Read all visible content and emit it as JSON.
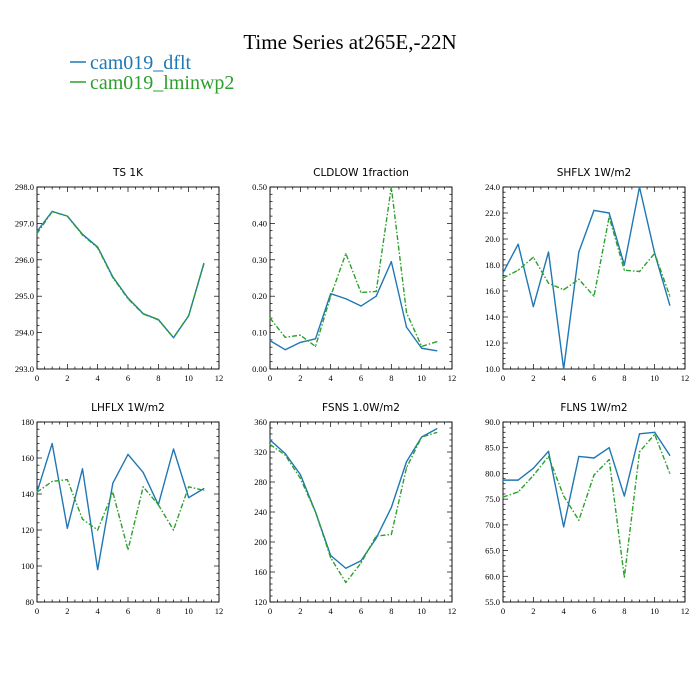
{
  "figure_title": "Time Series at265E,-22N",
  "colors": {
    "series1": "#1f77b4",
    "series2": "#2ca02c",
    "axis": "#000000",
    "background": "#ffffff"
  },
  "legend": [
    {
      "name": "cam019_dflt",
      "color": "#1f77b4"
    },
    {
      "name": "cam019_lminwp2",
      "color": "#2ca02c"
    }
  ],
  "chart_data": [
    {
      "type": "line",
      "title": "TS   1K",
      "x": [
        0,
        1,
        2,
        3,
        4,
        5,
        6,
        7,
        8,
        9,
        10,
        11
      ],
      "xlim": [
        0,
        12
      ],
      "xticks": [
        "0",
        "2",
        "4",
        "6",
        "8",
        "10",
        "12"
      ],
      "ylim": [
        293,
        298
      ],
      "yticks": [
        "293.0",
        "294.0",
        "295.0",
        "296.0",
        "297.0",
        "298.0"
      ],
      "series": [
        {
          "name": "cam019_dflt",
          "values": [
            296.78,
            297.33,
            297.2,
            296.7,
            296.35,
            295.53,
            294.95,
            294.52,
            294.36,
            293.86,
            294.46,
            295.9
          ]
        },
        {
          "name": "cam019_lminwp2",
          "values": [
            296.72,
            297.32,
            297.2,
            296.68,
            296.33,
            295.51,
            294.93,
            294.51,
            294.35,
            293.86,
            294.47,
            295.88
          ]
        }
      ]
    },
    {
      "type": "line",
      "title": "CLDLOW   1fraction",
      "x": [
        0,
        1,
        2,
        3,
        4,
        5,
        6,
        7,
        8,
        9,
        10,
        11
      ],
      "xlim": [
        0,
        12
      ],
      "xticks": [
        "0",
        "2",
        "4",
        "6",
        "8",
        "10",
        "12"
      ],
      "ylim": [
        0,
        0.5
      ],
      "yticks": [
        "0.00",
        "0.10",
        "0.20",
        "0.30",
        "0.40",
        "0.50"
      ],
      "series": [
        {
          "name": "cam019_dflt",
          "values": [
            0.078,
            0.053,
            0.073,
            0.083,
            0.207,
            0.193,
            0.173,
            0.2,
            0.295,
            0.115,
            0.057,
            0.05
          ]
        },
        {
          "name": "cam019_lminwp2",
          "values": [
            0.14,
            0.087,
            0.093,
            0.062,
            0.2,
            0.317,
            0.21,
            0.213,
            0.5,
            0.155,
            0.062,
            0.075
          ]
        }
      ]
    },
    {
      "type": "line",
      "title": "SHFLX   1W/m2",
      "x": [
        0,
        1,
        2,
        3,
        4,
        5,
        6,
        7,
        8,
        9,
        10,
        11
      ],
      "xlim": [
        0,
        12
      ],
      "xticks": [
        "0",
        "2",
        "4",
        "6",
        "8",
        "10",
        "12"
      ],
      "ylim": [
        10,
        24
      ],
      "yticks": [
        "10.0",
        "12.0",
        "14.0",
        "16.0",
        "18.0",
        "20.0",
        "22.0",
        "24.0"
      ],
      "series": [
        {
          "name": "cam019_dflt",
          "values": [
            17.4,
            19.6,
            14.8,
            19.0,
            10.0,
            19.0,
            22.2,
            22.0,
            18.0,
            24.0,
            18.9,
            14.9
          ]
        },
        {
          "name": "cam019_lminwp2",
          "values": [
            17.0,
            17.6,
            18.6,
            16.6,
            16.1,
            16.9,
            15.6,
            21.7,
            17.6,
            17.5,
            18.9,
            15.6
          ]
        }
      ]
    },
    {
      "type": "line",
      "title": "LHFLX   1W/m2",
      "x": [
        0,
        1,
        2,
        3,
        4,
        5,
        6,
        7,
        8,
        9,
        10,
        11
      ],
      "xlim": [
        0,
        12
      ],
      "xticks": [
        "0",
        "2",
        "4",
        "6",
        "8",
        "10",
        "12"
      ],
      "ylim": [
        80,
        180
      ],
      "yticks": [
        "80",
        "100",
        "120",
        "140",
        "160",
        "180"
      ],
      "series": [
        {
          "name": "cam019_dflt",
          "values": [
            141,
            168,
            121,
            154,
            98,
            146,
            162,
            152,
            134,
            165,
            138,
            143
          ]
        },
        {
          "name": "cam019_lminwp2",
          "values": [
            141,
            147,
            148,
            126,
            120,
            141,
            109,
            144,
            134,
            120,
            144,
            142
          ]
        }
      ]
    },
    {
      "type": "line",
      "title": "FSNS   1.0W/m2",
      "x": [
        0,
        1,
        2,
        3,
        4,
        5,
        6,
        7,
        8,
        9,
        10,
        11
      ],
      "xlim": [
        0,
        12
      ],
      "xticks": [
        "0",
        "2",
        "4",
        "6",
        "8",
        "10",
        "12"
      ],
      "ylim": [
        120,
        360
      ],
      "yticks": [
        "120",
        "160",
        "200",
        "240",
        "280",
        "320",
        "360"
      ],
      "series": [
        {
          "name": "cam019_dflt",
          "values": [
            336,
            318,
            290,
            240,
            182,
            165,
            175,
            205,
            246,
            307,
            340,
            351
          ]
        },
        {
          "name": "cam019_lminwp2",
          "values": [
            330,
            316,
            285,
            240,
            179,
            146,
            172,
            208,
            210,
            299,
            340,
            346
          ]
        }
      ]
    },
    {
      "type": "line",
      "title": "FLNS   1W/m2",
      "x": [
        0,
        1,
        2,
        3,
        4,
        5,
        6,
        7,
        8,
        9,
        10,
        11
      ],
      "xlim": [
        0,
        12
      ],
      "xticks": [
        "0",
        "2",
        "4",
        "6",
        "8",
        "10",
        "12"
      ],
      "ylim": [
        55,
        90
      ],
      "yticks": [
        "55.0",
        "60.0",
        "65.0",
        "70.0",
        "75.0",
        "80.0",
        "85.0",
        "90.0"
      ],
      "series": [
        {
          "name": "cam019_dflt",
          "values": [
            78.7,
            78.7,
            81.0,
            84.3,
            69.6,
            83.3,
            83.0,
            85.0,
            75.6,
            87.7,
            88.0,
            83.5
          ]
        },
        {
          "name": "cam019_lminwp2",
          "values": [
            75.4,
            76.4,
            79.6,
            83.3,
            75.6,
            70.9,
            79.7,
            82.7,
            59.8,
            84.2,
            87.6,
            80.0
          ]
        }
      ]
    }
  ]
}
